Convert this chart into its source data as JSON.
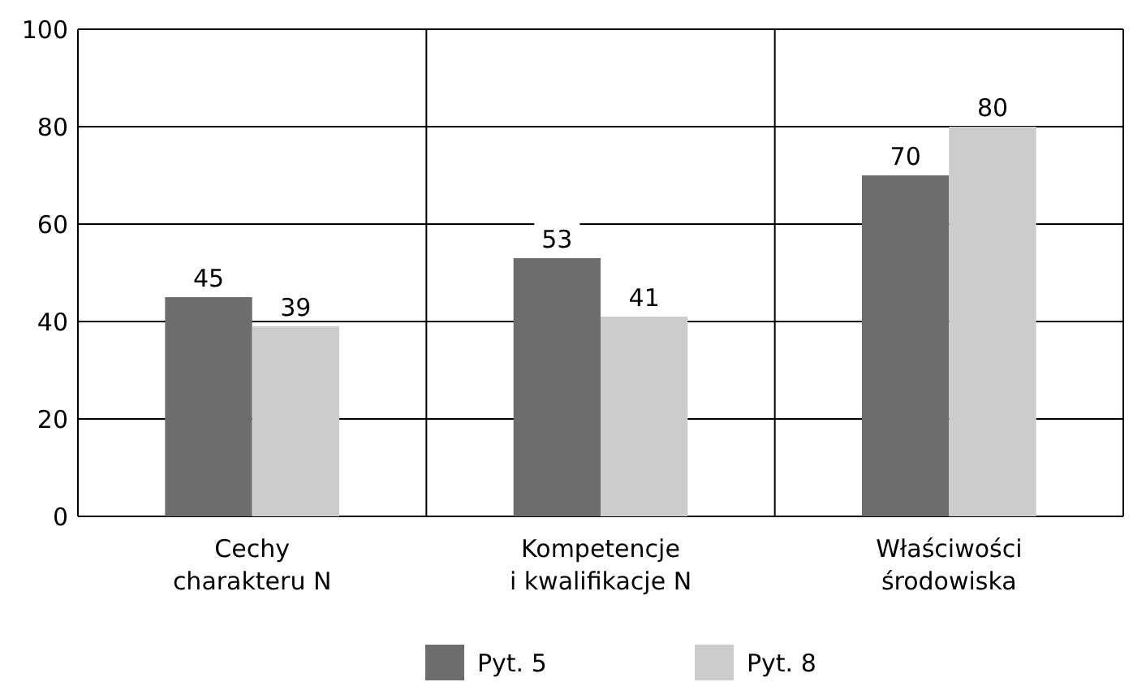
{
  "chart_data": {
    "type": "bar",
    "categories": [
      "Cechy charakteru N",
      "Kompetencje i kwalifikacje N",
      "Właściwości środowiska"
    ],
    "series": [
      {
        "name": "Pyt. 5",
        "color": "#6d6d6d",
        "values": [
          45,
          53,
          70
        ]
      },
      {
        "name": "Pyt. 8",
        "color": "#cccccc",
        "values": [
          39,
          41,
          80
        ]
      }
    ],
    "ylim": [
      0,
      100
    ],
    "yticks": [
      0,
      20,
      40,
      60,
      80,
      100
    ],
    "grid": "y",
    "data_labels": true,
    "legend": "bottom"
  }
}
